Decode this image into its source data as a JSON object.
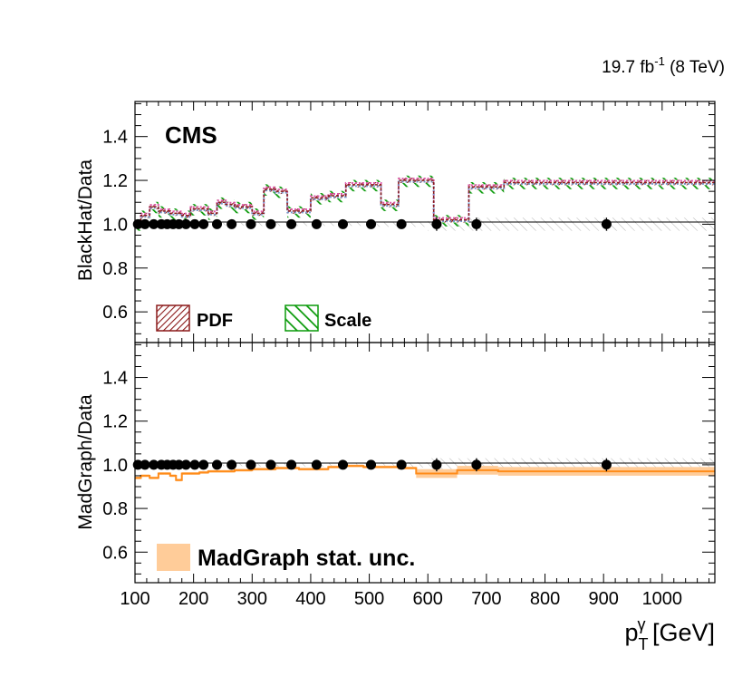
{
  "lumi_label": {
    "main": "19.7 fb",
    "sup": "-1",
    "rest": " (8 TeV)"
  },
  "experiment": "CMS",
  "x_axis": {
    "label_main": "p",
    "label_sub": "T",
    "label_sup": "γ",
    "label_unit": " [GeV]",
    "xlim": [
      100,
      1090
    ],
    "ticks": [
      100,
      200,
      300,
      400,
      500,
      600,
      700,
      800,
      900,
      1000
    ]
  },
  "colors": {
    "pdf": "#8b1a1a",
    "scale": "#0a9a0a",
    "mg": "#ff8c1a",
    "mg_band": "#ffcc99",
    "pink": "#dd55aa",
    "blue": "#7799cc",
    "data": "#000000",
    "data_band": "#aaaaaa"
  },
  "chart_data": [
    {
      "type": "line",
      "panel": "top",
      "ylabel": "BlackHat/Data",
      "ylim": [
        0.46,
        1.56
      ],
      "yticks": [
        0.6,
        0.8,
        1.0,
        1.2,
        1.4
      ],
      "legend": [
        {
          "label": "PDF",
          "style": "pdf"
        },
        {
          "label": "Scale",
          "style": "scale"
        }
      ],
      "bin_edges": [
        100,
        110,
        120,
        130,
        140,
        150,
        160,
        170,
        180,
        190,
        200,
        210,
        220,
        230,
        240,
        250,
        260,
        270,
        280,
        290,
        300,
        310,
        320,
        330,
        340,
        350,
        360,
        370,
        380,
        390,
        400,
        410,
        420,
        430,
        440,
        450,
        460,
        470,
        480,
        490,
        500,
        510,
        520,
        530,
        540,
        550,
        560,
        570,
        580,
        590,
        600,
        610,
        620,
        630,
        640,
        650,
        660,
        670,
        680,
        690,
        700,
        710,
        720,
        730,
        740,
        750,
        760,
        770,
        780,
        790,
        800,
        810,
        820,
        830,
        840,
        850,
        860,
        870,
        880,
        890,
        900,
        910,
        920,
        930,
        940,
        950,
        960,
        970,
        980,
        990,
        1000,
        1010,
        1020,
        1030,
        1040,
        1050,
        1060,
        1070,
        1080,
        1090
      ],
      "prediction": {
        "edges": [
          100,
          110,
          125,
          140,
          150,
          160,
          170,
          180,
          195,
          210,
          225,
          240,
          255,
          270,
          285,
          300,
          320,
          340,
          360,
          380,
          400,
          430,
          460,
          490,
          520,
          550,
          580,
          610,
          640,
          670,
          700,
          730,
          1090
        ],
        "values": [
          1.0,
          1.04,
          1.08,
          1.06,
          1.06,
          1.05,
          1.05,
          1.04,
          1.07,
          1.07,
          1.05,
          1.1,
          1.09,
          1.08,
          1.08,
          1.05,
          1.16,
          1.15,
          1.06,
          1.06,
          1.12,
          1.13,
          1.18,
          1.18,
          1.09,
          1.2,
          1.2,
          1.02,
          1.02,
          1.17,
          1.17,
          1.19,
          1.19
        ]
      },
      "data_points": [
        {
          "x": 105,
          "y": 1.0
        },
        {
          "x": 117,
          "y": 1.0
        },
        {
          "x": 132,
          "y": 1.0
        },
        {
          "x": 145,
          "y": 1.0
        },
        {
          "x": 155,
          "y": 1.0
        },
        {
          "x": 165,
          "y": 1.0
        },
        {
          "x": 175,
          "y": 1.0
        },
        {
          "x": 187,
          "y": 1.0
        },
        {
          "x": 202,
          "y": 1.0
        },
        {
          "x": 217,
          "y": 1.0
        },
        {
          "x": 240,
          "y": 1.0
        },
        {
          "x": 265,
          "y": 1.0
        },
        {
          "x": 298,
          "y": 1.0
        },
        {
          "x": 332,
          "y": 1.0
        },
        {
          "x": 367,
          "y": 1.0
        },
        {
          "x": 410,
          "y": 1.0
        },
        {
          "x": 455,
          "y": 1.0
        },
        {
          "x": 503,
          "y": 1.0
        },
        {
          "x": 555,
          "y": 1.0
        },
        {
          "x": 615,
          "y": 1.0,
          "err": 0.03
        },
        {
          "x": 683,
          "y": 1.0,
          "err": 0.03
        },
        {
          "x": 905,
          "y": 1.0,
          "err": 0.03
        }
      ],
      "data_unc_band": {
        "edges": [
          100,
          300,
          500,
          600,
          650,
          700,
          1090
        ],
        "halfwidth": [
          0.006,
          0.008,
          0.012,
          0.03,
          0.03,
          0.03,
          0.03
        ]
      }
    },
    {
      "type": "line",
      "panel": "bottom",
      "ylabel": "MadGraph/Data",
      "ylim": [
        0.46,
        1.56
      ],
      "yticks": [
        0.6,
        0.8,
        1.0,
        1.2,
        1.4
      ],
      "legend": [
        {
          "label": "MadGraph stat. unc.",
          "style": "mg_band"
        }
      ],
      "prediction": {
        "edges": [
          100,
          110,
          125,
          140,
          150,
          160,
          170,
          180,
          195,
          210,
          225,
          240,
          270,
          300,
          340,
          380,
          430,
          460,
          490,
          520,
          550,
          580,
          650,
          720,
          1090
        ],
        "values": [
          0.94,
          0.95,
          0.94,
          0.96,
          0.96,
          0.95,
          0.93,
          0.96,
          0.96,
          0.965,
          0.97,
          0.97,
          0.975,
          0.98,
          0.985,
          0.98,
          0.99,
          0.995,
          0.99,
          0.99,
          0.985,
          0.96,
          0.975,
          0.97,
          0.97
        ]
      },
      "data_points": [
        {
          "x": 105,
          "y": 1.0
        },
        {
          "x": 117,
          "y": 1.0
        },
        {
          "x": 132,
          "y": 1.0
        },
        {
          "x": 145,
          "y": 1.0
        },
        {
          "x": 155,
          "y": 1.0
        },
        {
          "x": 165,
          "y": 1.0
        },
        {
          "x": 175,
          "y": 1.0
        },
        {
          "x": 187,
          "y": 1.0
        },
        {
          "x": 202,
          "y": 1.0
        },
        {
          "x": 217,
          "y": 1.0
        },
        {
          "x": 240,
          "y": 1.0
        },
        {
          "x": 265,
          "y": 1.0
        },
        {
          "x": 298,
          "y": 1.0
        },
        {
          "x": 332,
          "y": 1.0
        },
        {
          "x": 367,
          "y": 1.0
        },
        {
          "x": 410,
          "y": 1.0
        },
        {
          "x": 455,
          "y": 1.0
        },
        {
          "x": 503,
          "y": 1.0
        },
        {
          "x": 555,
          "y": 1.0
        },
        {
          "x": 615,
          "y": 1.0,
          "err": 0.03
        },
        {
          "x": 683,
          "y": 1.0,
          "err": 0.03
        },
        {
          "x": 905,
          "y": 1.0,
          "err": 0.03
        }
      ]
    }
  ]
}
